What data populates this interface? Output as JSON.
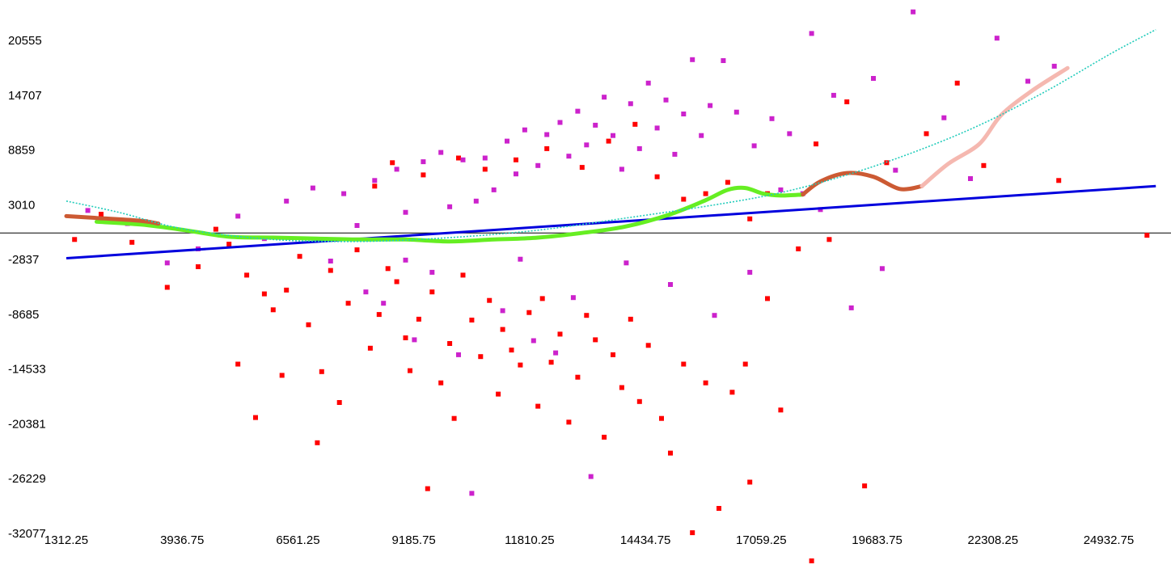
{
  "chart_data": {
    "type": "scatter",
    "title": "",
    "xlabel": "",
    "ylabel": "",
    "xlim": [
      1312.25,
      26000
    ],
    "ylim": [
      -32077,
      23700
    ],
    "x_ticks": [
      "1312.25",
      "3936.75",
      "6561.25",
      "9185.75",
      "11810.25",
      "14434.75",
      "17059.25",
      "19683.75",
      "22308.25",
      "24932.75"
    ],
    "y_ticks": [
      "20555",
      "14707",
      "8859",
      "3010",
      "-2837",
      "-8685",
      "-14533",
      "-20381",
      "-26229",
      "-32077"
    ],
    "grid": false,
    "legend": "none",
    "zero_line": 0,
    "series": [
      {
        "kind": "scatter",
        "color": "#ff0000",
        "points": [
          [
            1500,
            -700
          ],
          [
            2100,
            2000
          ],
          [
            2800,
            -1000
          ],
          [
            3100,
            1200
          ],
          [
            3600,
            -5800
          ],
          [
            4300,
            -3600
          ],
          [
            4700,
            400
          ],
          [
            5000,
            -1200
          ],
          [
            5200,
            -14000
          ],
          [
            5400,
            -4500
          ],
          [
            5600,
            -19700
          ],
          [
            5800,
            -6500
          ],
          [
            6000,
            -8200
          ],
          [
            6200,
            -15200
          ],
          [
            6300,
            -6100
          ],
          [
            6600,
            -2500
          ],
          [
            6800,
            -9800
          ],
          [
            7000,
            -22400
          ],
          [
            7100,
            -14800
          ],
          [
            7300,
            -4000
          ],
          [
            7500,
            -18100
          ],
          [
            7700,
            -7500
          ],
          [
            7900,
            -1800
          ],
          [
            8200,
            -12300
          ],
          [
            8400,
            -8700
          ],
          [
            8600,
            -3800
          ],
          [
            8800,
            -5200
          ],
          [
            9000,
            -11200
          ],
          [
            9100,
            -14700
          ],
          [
            9300,
            -9200
          ],
          [
            9500,
            -27300
          ],
          [
            9600,
            -6300
          ],
          [
            9800,
            -16000
          ],
          [
            10000,
            -11800
          ],
          [
            10100,
            -19800
          ],
          [
            10300,
            -4500
          ],
          [
            10500,
            -9300
          ],
          [
            10700,
            -13200
          ],
          [
            10900,
            -7200
          ],
          [
            11100,
            -17200
          ],
          [
            11200,
            -10300
          ],
          [
            11400,
            -12500
          ],
          [
            11600,
            -14100
          ],
          [
            11800,
            -8500
          ],
          [
            12000,
            -18500
          ],
          [
            12100,
            -7000
          ],
          [
            12300,
            -13800
          ],
          [
            12500,
            -10800
          ],
          [
            12700,
            -20200
          ],
          [
            12900,
            -15400
          ],
          [
            13100,
            -8800
          ],
          [
            13300,
            -11400
          ],
          [
            13500,
            -21800
          ],
          [
            13700,
            -13000
          ],
          [
            13900,
            -16500
          ],
          [
            14100,
            -9200
          ],
          [
            14300,
            -18000
          ],
          [
            14500,
            -12000
          ],
          [
            14800,
            -19800
          ],
          [
            15000,
            -23500
          ],
          [
            15300,
            -14000
          ],
          [
            15500,
            -32000
          ],
          [
            15800,
            -16000
          ],
          [
            16100,
            -29400
          ],
          [
            16400,
            -17000
          ],
          [
            16700,
            -14000
          ],
          [
            16800,
            -26600
          ],
          [
            17200,
            -7000
          ],
          [
            17500,
            -18900
          ],
          [
            17900,
            -1700
          ],
          [
            18200,
            -35000
          ],
          [
            18600,
            -700
          ],
          [
            19400,
            -27000
          ],
          [
            8300,
            5000
          ],
          [
            8700,
            7500
          ],
          [
            9400,
            6200
          ],
          [
            10200,
            8000
          ],
          [
            10800,
            6800
          ],
          [
            11500,
            7800
          ],
          [
            12200,
            9000
          ],
          [
            13000,
            7000
          ],
          [
            13600,
            9800
          ],
          [
            14200,
            11600
          ],
          [
            14700,
            6000
          ],
          [
            15300,
            3600
          ],
          [
            15800,
            4200
          ],
          [
            16300,
            5400
          ],
          [
            16800,
            1500
          ],
          [
            17200,
            4200
          ],
          [
            18300,
            9500
          ],
          [
            19000,
            14000
          ],
          [
            19900,
            7500
          ],
          [
            20800,
            10600
          ],
          [
            21500,
            16000
          ],
          [
            22100,
            7200
          ],
          [
            23800,
            5600
          ],
          [
            25800,
            -250
          ]
        ]
      },
      {
        "kind": "scatter",
        "color": "#cc22cc",
        "points": [
          [
            1800,
            2400
          ],
          [
            2700,
            1000
          ],
          [
            3600,
            -3200
          ],
          [
            4300,
            -1700
          ],
          [
            5200,
            1800
          ],
          [
            5800,
            -600
          ],
          [
            6300,
            3400
          ],
          [
            6900,
            4800
          ],
          [
            7300,
            -3000
          ],
          [
            7600,
            4200
          ],
          [
            7900,
            800
          ],
          [
            8100,
            -6300
          ],
          [
            8300,
            5600
          ],
          [
            8500,
            -7500
          ],
          [
            8800,
            6800
          ],
          [
            9000,
            2200
          ],
          [
            9200,
            -11400
          ],
          [
            9400,
            7600
          ],
          [
            9600,
            -4200
          ],
          [
            9800,
            8600
          ],
          [
            10000,
            2800
          ],
          [
            10200,
            -13000
          ],
          [
            10300,
            7800
          ],
          [
            10500,
            -27800
          ],
          [
            10600,
            3400
          ],
          [
            10800,
            8000
          ],
          [
            11000,
            4600
          ],
          [
            11200,
            -8300
          ],
          [
            11300,
            9800
          ],
          [
            11500,
            6300
          ],
          [
            11700,
            11000
          ],
          [
            11900,
            -11500
          ],
          [
            12000,
            7200
          ],
          [
            12200,
            10500
          ],
          [
            12400,
            -12800
          ],
          [
            12500,
            11800
          ],
          [
            12700,
            8200
          ],
          [
            12900,
            13000
          ],
          [
            13100,
            9400
          ],
          [
            13300,
            11500
          ],
          [
            13500,
            14500
          ],
          [
            13700,
            10400
          ],
          [
            13900,
            6800
          ],
          [
            14100,
            13800
          ],
          [
            14300,
            9000
          ],
          [
            14500,
            16000
          ],
          [
            14700,
            11200
          ],
          [
            14900,
            14200
          ],
          [
            15100,
            8400
          ],
          [
            15300,
            12700
          ],
          [
            15500,
            18500
          ],
          [
            15700,
            10400
          ],
          [
            15900,
            13600
          ],
          [
            16200,
            18400
          ],
          [
            16500,
            12900
          ],
          [
            16800,
            -4200
          ],
          [
            16900,
            9300
          ],
          [
            17300,
            12200
          ],
          [
            17500,
            4600
          ],
          [
            17700,
            10600
          ],
          [
            18000,
            4200
          ],
          [
            18200,
            21300
          ],
          [
            18400,
            2500
          ],
          [
            18700,
            14700
          ],
          [
            19100,
            -8000
          ],
          [
            19600,
            16500
          ],
          [
            19800,
            -3800
          ],
          [
            20100,
            6700
          ],
          [
            20500,
            23600
          ],
          [
            21200,
            12300
          ],
          [
            21800,
            5800
          ],
          [
            22400,
            20800
          ],
          [
            23100,
            16200
          ],
          [
            23700,
            17800
          ],
          [
            16000,
            -8800
          ],
          [
            15000,
            -5500
          ],
          [
            14000,
            -3200
          ],
          [
            12800,
            -6900
          ],
          [
            11600,
            -2800
          ],
          [
            9000,
            -2900
          ],
          [
            13200,
            -26000
          ]
        ]
      },
      {
        "kind": "line",
        "name": "",
        "color": "#0000dd",
        "points": [
          [
            1312.25,
            -2700
          ],
          [
            26000,
            5000
          ]
        ]
      },
      {
        "kind": "smooth",
        "color": "#66ee22",
        "points": [
          [
            2000,
            1200
          ],
          [
            3000,
            900
          ],
          [
            4000,
            300
          ],
          [
            5000,
            -400
          ],
          [
            6000,
            -500
          ],
          [
            7000,
            -600
          ],
          [
            8000,
            -700
          ],
          [
            9000,
            -700
          ],
          [
            10000,
            -900
          ],
          [
            11000,
            -700
          ],
          [
            12000,
            -500
          ],
          [
            13000,
            0
          ],
          [
            14000,
            700
          ],
          [
            15000,
            2000
          ],
          [
            15800,
            3500
          ],
          [
            16300,
            4600
          ],
          [
            16700,
            4800
          ],
          [
            17100,
            4200
          ],
          [
            17500,
            4000
          ],
          [
            18000,
            4100
          ]
        ]
      },
      {
        "kind": "smooth",
        "color": "#cc5a33",
        "points": [
          [
            1312.25,
            1800
          ],
          [
            2000,
            1600
          ],
          [
            3000,
            1300
          ],
          [
            3400,
            1000
          ],
          [
            18000,
            4100
          ],
          [
            18400,
            5500
          ],
          [
            19000,
            6400
          ],
          [
            19600,
            6000
          ],
          [
            20200,
            4700
          ],
          [
            20700,
            5000
          ]
        ]
      },
      {
        "kind": "smooth",
        "color": "#f5b8b0",
        "points": [
          [
            20700,
            5000
          ],
          [
            21300,
            7400
          ],
          [
            22000,
            9500
          ],
          [
            22500,
            12600
          ],
          [
            23200,
            15200
          ],
          [
            24000,
            17600
          ]
        ]
      },
      {
        "kind": "dotted",
        "color": "#22ccbb",
        "points": [
          [
            1312.25,
            3400
          ],
          [
            2500,
            2200
          ],
          [
            4000,
            400
          ],
          [
            6000,
            -700
          ],
          [
            8000,
            -900
          ],
          [
            10000,
            -500
          ],
          [
            12000,
            300
          ],
          [
            14000,
            1600
          ],
          [
            16000,
            3000
          ],
          [
            17500,
            4300
          ],
          [
            19000,
            6200
          ],
          [
            20500,
            8600
          ],
          [
            22000,
            11500
          ],
          [
            23500,
            15100
          ],
          [
            25000,
            19200
          ],
          [
            26000,
            21700
          ]
        ]
      }
    ]
  }
}
